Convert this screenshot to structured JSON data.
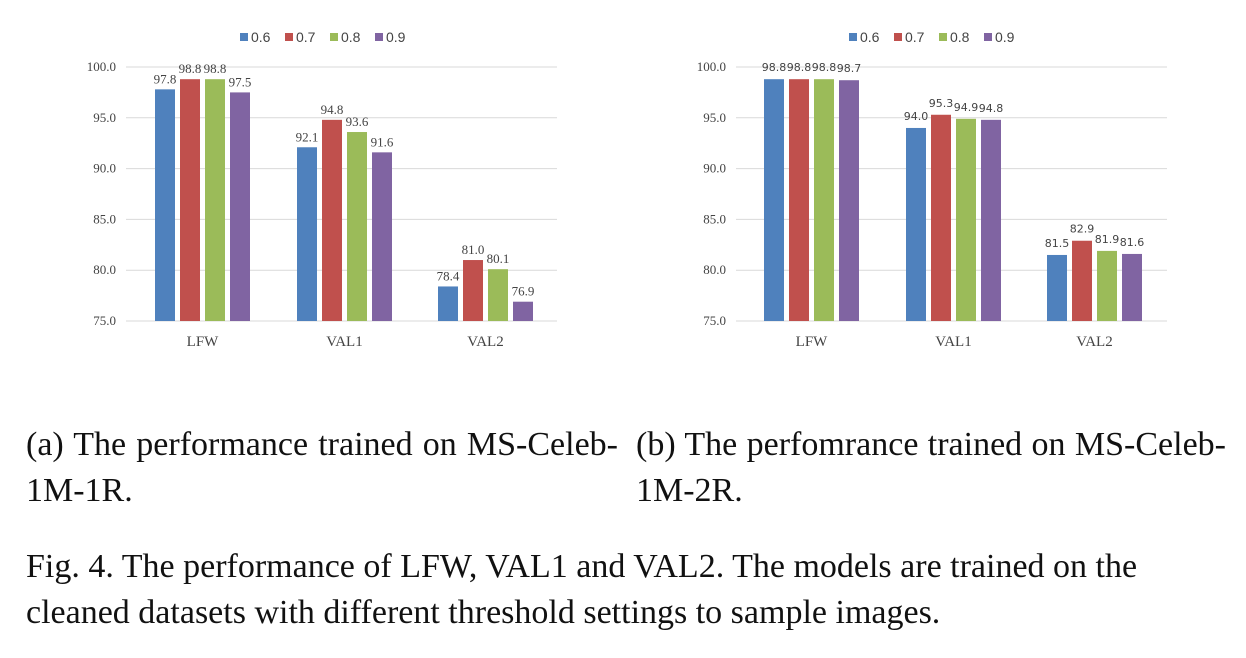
{
  "chart_data": [
    {
      "type": "bar",
      "categories": [
        "LFW",
        "VAL1",
        "VAL2"
      ],
      "series": [
        {
          "name": "0.6",
          "color": "#4f81bd",
          "values": [
            97.8,
            92.1,
            78.4
          ]
        },
        {
          "name": "0.7",
          "color": "#c0504d",
          "values": [
            98.8,
            94.8,
            81.0
          ]
        },
        {
          "name": "0.8",
          "color": "#9bbb59",
          "values": [
            98.8,
            93.6,
            80.1
          ]
        },
        {
          "name": "0.9",
          "color": "#8064a2",
          "values": [
            97.5,
            91.6,
            76.9
          ]
        }
      ],
      "data_labels": [
        [
          "97.8",
          "92.1",
          "78.4"
        ],
        [
          "98.8",
          "94.8",
          "81.0"
        ],
        [
          "98.8",
          "93.6",
          "80.1"
        ],
        [
          "97.5",
          "91.6",
          "76.9"
        ]
      ],
      "yticks": [
        "75.0",
        "80.0",
        "85.0",
        "90.0",
        "95.0",
        "100.0"
      ],
      "ylim": [
        75,
        100
      ],
      "grid": true,
      "legend": "top"
    },
    {
      "type": "bar",
      "categories": [
        "LFW",
        "VAL1",
        "VAL2"
      ],
      "series": [
        {
          "name": "0.6",
          "color": "#4f81bd",
          "values": [
            98.8,
            94.0,
            81.5
          ]
        },
        {
          "name": "0.7",
          "color": "#c0504d",
          "values": [
            98.8,
            95.3,
            82.9
          ]
        },
        {
          "name": "0.8",
          "color": "#9bbb59",
          "values": [
            98.8,
            94.9,
            81.9
          ]
        },
        {
          "name": "0.9",
          "color": "#8064a2",
          "values": [
            98.7,
            94.8,
            81.6
          ]
        }
      ],
      "data_labels": [
        [
          "98.8",
          "94.0",
          "81.5"
        ],
        [
          "98.8",
          "95.3",
          "82.9"
        ],
        [
          "98.8",
          "94.9",
          "81.9"
        ],
        [
          "98.7",
          "94.8",
          "81.6"
        ]
      ],
      "yticks": [
        "75.0",
        "80.0",
        "85.0",
        "90.0",
        "95.0",
        "100.0"
      ],
      "ylim": [
        75,
        100
      ],
      "grid": true,
      "legend": "top"
    }
  ],
  "captions": {
    "a": "(a) The performance trained on MS-Celeb-1M-1R.",
    "b": "(b) The perfomrance trained on MS-Celeb-1M-2R.",
    "figure": "Fig. 4.  The performance of LFW, VAL1 and VAL2. The models are trained on the cleaned datasets with different threshold settings to sample images."
  }
}
